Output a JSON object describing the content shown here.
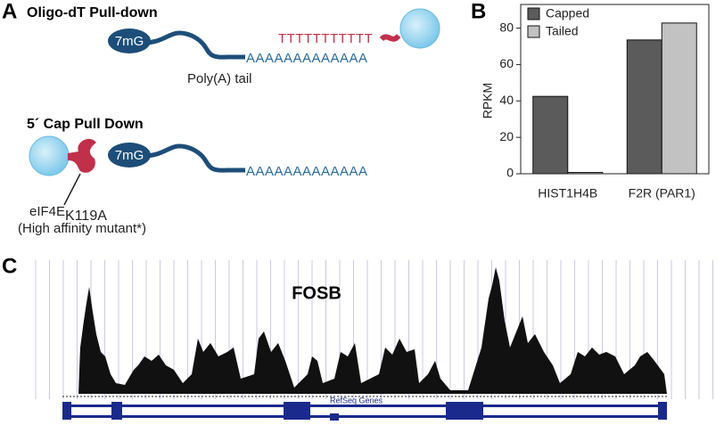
{
  "panel_a": {
    "label": "A",
    "oligo": {
      "title": "Oligo-dT Pull-down",
      "cap": "7mG",
      "primer": "TTTTTTTTTTT",
      "tail": "AAAAAAAAAAAAA",
      "tail_label": "Poly(A) tail"
    },
    "cap_pull": {
      "title": "5´ Cap Pull Down",
      "cap": "7mG",
      "tail": "AAAAAAAAAAAAA",
      "protein": "eIF4E",
      "protein_sub": "K119A",
      "note": "(High affinity mutant*)"
    }
  },
  "panel_b": {
    "label": "B"
  },
  "chart_data": {
    "type": "bar",
    "ylabel": "RPKM",
    "categories": [
      "HIST1H4B",
      "F2R (PAR1)"
    ],
    "series": [
      {
        "name": "Capped",
        "color": "#5b5b5b",
        "values": [
          42.5,
          73.5
        ]
      },
      {
        "name": "Tailed",
        "color": "#c2c2c2",
        "values": [
          0.7,
          82.8
        ]
      }
    ],
    "ylim": [
      0,
      93
    ],
    "yticks": [
      0,
      20,
      40,
      60,
      80
    ],
    "legend": "upper-left"
  },
  "panel_c": {
    "label": "C",
    "gene": "FOSB",
    "track": "RefSeq Genes"
  }
}
